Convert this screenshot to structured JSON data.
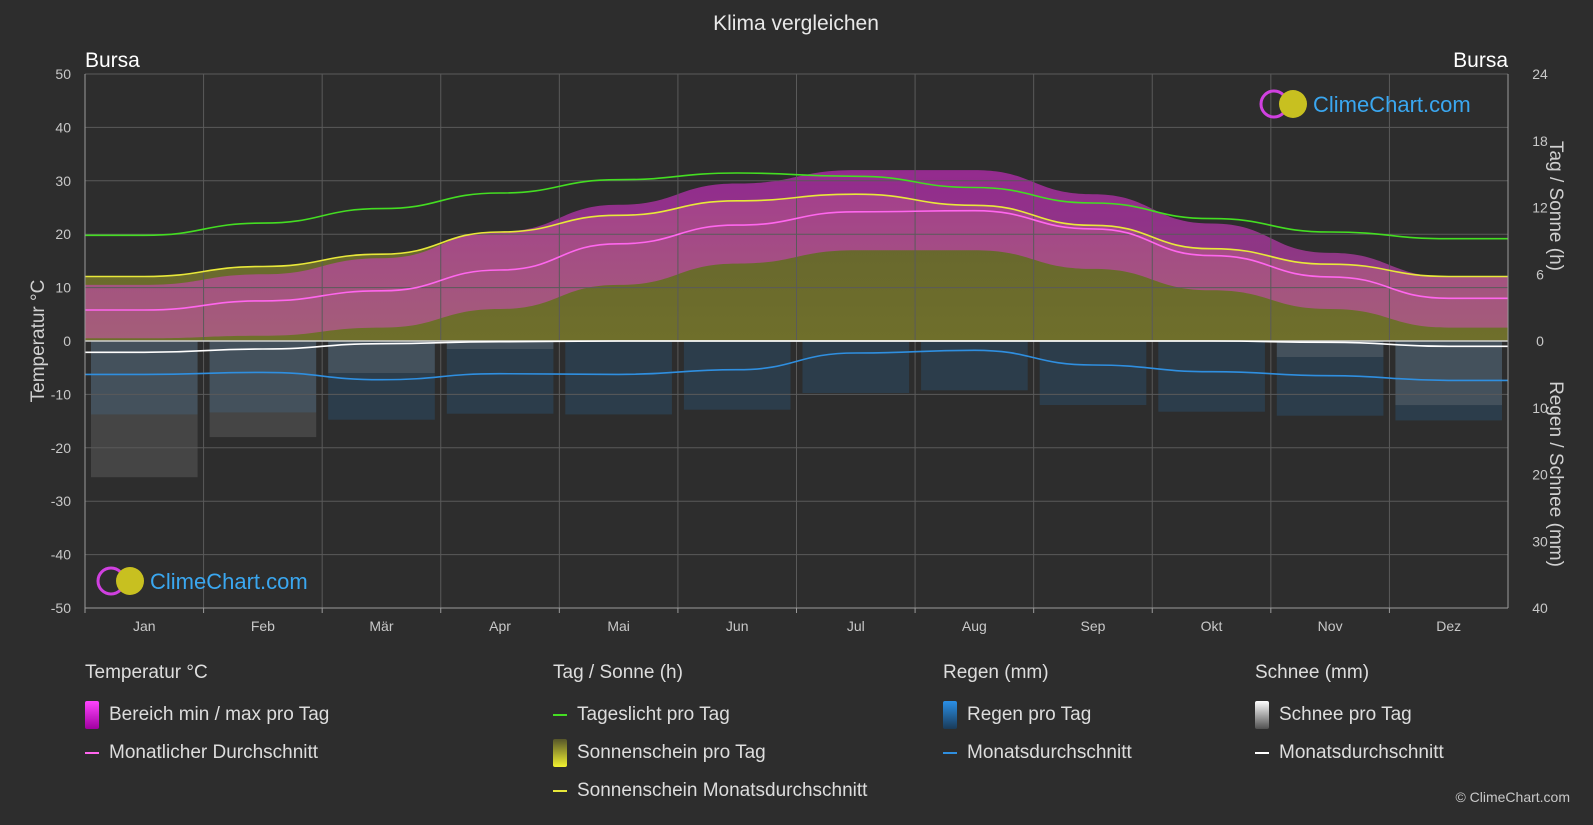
{
  "title": "Klima vergleichen",
  "location_left": "Bursa",
  "location_right": "Bursa",
  "logo_text": "ClimeChart.com",
  "copyright": "© ClimeChart.com",
  "colors": {
    "background": "#2d2d2d",
    "temp_range": "#d020c8",
    "temp_avg": "#ff66ee",
    "daylight": "#44dd22",
    "sunshine_area": "#8a8a2a",
    "sunshine_avg": "#e8e83a",
    "rain": "#2a88d8",
    "rain_avg": "#2f8fe0",
    "snow": "#9a9a9a",
    "snow_avg": "#ffffff",
    "logo": "#3aa7f0"
  },
  "chart_data": {
    "type": "line",
    "title": "Klima vergleichen",
    "x_categories": [
      "Jan",
      "Feb",
      "Mär",
      "Apr",
      "Mai",
      "Jun",
      "Jul",
      "Aug",
      "Sep",
      "Okt",
      "Nov",
      "Dez"
    ],
    "left_axis": {
      "label": "Temperatur °C",
      "range": [
        -50,
        50
      ],
      "ticks": [
        "50",
        "40",
        "30",
        "20",
        "10",
        "0",
        "-10",
        "-20",
        "-30",
        "-40",
        "-50"
      ]
    },
    "right_axis_top": {
      "label": "Tag / Sonne (h)",
      "range": [
        0,
        24
      ],
      "ticks": [
        "24",
        "18",
        "12",
        "6",
        "0"
      ]
    },
    "right_axis_bottom": {
      "label": "Regen / Schnee (mm)",
      "range": [
        0,
        40
      ],
      "ticks": [
        "10",
        "20",
        "30",
        "40"
      ]
    },
    "grid": true,
    "series": [
      {
        "name": "Tageslicht pro Tag",
        "unit": "h",
        "values": [
          9.5,
          10.6,
          11.9,
          13.3,
          14.5,
          15.1,
          14.8,
          13.8,
          12.4,
          11.0,
          9.8,
          9.2
        ]
      },
      {
        "name": "Sonnenschein Monatsdurchschnitt",
        "unit": "h",
        "values": [
          5.8,
          6.7,
          7.8,
          9.8,
          11.3,
          12.6,
          13.2,
          12.2,
          10.4,
          8.3,
          6.9,
          5.8
        ]
      },
      {
        "name": "Monatlicher Durchschnitt",
        "unit": "°C",
        "values": [
          5.8,
          7.5,
          9.4,
          13.3,
          18.2,
          21.7,
          24.2,
          24.4,
          21.0,
          16.0,
          12.0,
          8.0
        ]
      },
      {
        "name": "Bereich min / max pro Tag",
        "unit": "°C",
        "min": [
          0.5,
          1.0,
          2.5,
          6.0,
          10.5,
          14.5,
          17.0,
          17.0,
          13.5,
          9.5,
          6.0,
          2.5
        ],
        "max": [
          10.5,
          12.5,
          15.5,
          20.5,
          25.5,
          29.5,
          32.0,
          32.0,
          27.5,
          22.0,
          16.5,
          12.0
        ]
      },
      {
        "name": "Regen Monatsdurchschnitt",
        "unit": "mm",
        "values": [
          5.0,
          4.7,
          5.8,
          4.9,
          5.0,
          4.3,
          1.8,
          1.4,
          3.6,
          4.6,
          5.2,
          5.9
        ]
      },
      {
        "name": "Schnee Monatsdurchschnitt",
        "unit": "mm",
        "values": [
          1.7,
          1.2,
          0.4,
          0.1,
          0.0,
          0.0,
          0.0,
          0.0,
          0.0,
          0.0,
          0.2,
          0.8
        ]
      }
    ]
  },
  "legend": {
    "temperature": {
      "header": "Temperatur °C",
      "items": [
        "Bereich min / max pro Tag",
        "Monatlicher Durchschnitt"
      ]
    },
    "sun": {
      "header": "Tag / Sonne (h)",
      "items": [
        "Tageslicht pro Tag",
        "Sonnenschein pro Tag",
        "Sonnenschein Monatsdurchschnitt"
      ]
    },
    "rain": {
      "header": "Regen (mm)",
      "items": [
        "Regen pro Tag",
        "Monatsdurchschnitt"
      ]
    },
    "snow": {
      "header": "Schnee (mm)",
      "items": [
        "Schnee pro Tag",
        "Monatsdurchschnitt"
      ]
    }
  }
}
